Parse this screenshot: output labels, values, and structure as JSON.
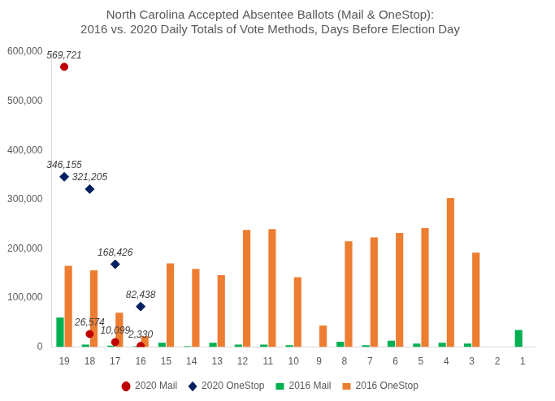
{
  "chart_data": {
    "type": "bar",
    "title": [
      "North Carolina Accepted Absentee Ballots (Mail & OneStop):",
      "2016 vs. 2020 Daily Totals of Vote Methods, Days Before Election Day"
    ],
    "categories": [
      "19",
      "18",
      "17",
      "16",
      "15",
      "14",
      "13",
      "12",
      "11",
      "10",
      "9",
      "8",
      "7",
      "6",
      "5",
      "4",
      "3",
      "2",
      "1"
    ],
    "series": [
      {
        "name": "2016 Mail",
        "type": "bar",
        "color": "#00b050",
        "values": [
          60000,
          5000,
          3000,
          2000,
          9000,
          2000,
          9000,
          5000,
          5000,
          4000,
          null,
          11000,
          4000,
          13000,
          7000,
          9000,
          7000,
          null,
          35000
        ]
      },
      {
        "name": "2016 OneStop",
        "type": "bar",
        "color": "#ed7d31",
        "values": [
          165000,
          156000,
          70000,
          22000,
          170000,
          159000,
          146000,
          238000,
          240000,
          142000,
          44000,
          215000,
          223000,
          232000,
          242000,
          303000,
          192000,
          null,
          null
        ]
      },
      {
        "name": "2020 Mail",
        "type": "line",
        "marker": "circle",
        "line_style": "none",
        "color": "#c00000",
        "data_labels": true,
        "values": [
          569721,
          26574,
          10099,
          2330,
          null,
          null,
          null,
          null,
          null,
          null,
          null,
          null,
          null,
          null,
          null,
          null,
          null,
          null,
          null
        ],
        "value_labels": [
          "569,721",
          "26,574",
          "10,099",
          "2,330",
          null,
          null,
          null,
          null,
          null,
          null,
          null,
          null,
          null,
          null,
          null,
          null,
          null,
          null,
          null
        ]
      },
      {
        "name": "2020 OneStop",
        "type": "line",
        "marker": "diamond",
        "line_style": "none",
        "color": "#002060",
        "data_labels": true,
        "values": [
          346155,
          321205,
          168426,
          82438,
          null,
          null,
          null,
          null,
          null,
          null,
          null,
          null,
          null,
          null,
          null,
          null,
          null,
          null,
          null
        ],
        "value_labels": [
          "346,155",
          "321,205",
          "168,426",
          "82,438",
          null,
          null,
          null,
          null,
          null,
          null,
          null,
          null,
          null,
          null,
          null,
          null,
          null,
          null,
          null
        ]
      }
    ],
    "ylim": [
      0,
      600000
    ],
    "yticks": [
      0,
      {
        "value": 100000,
        "label": "100,000"
      },
      {
        "value": 200000,
        "label": "200,000"
      },
      {
        "value": 300000,
        "label": "300,000"
      },
      {
        "value": 400000,
        "label": "400,000"
      },
      {
        "value": 500000,
        "label": "500,000"
      },
      {
        "value": 600000,
        "label": "600,000"
      }
    ],
    "grid": false,
    "legend": "bottom"
  }
}
